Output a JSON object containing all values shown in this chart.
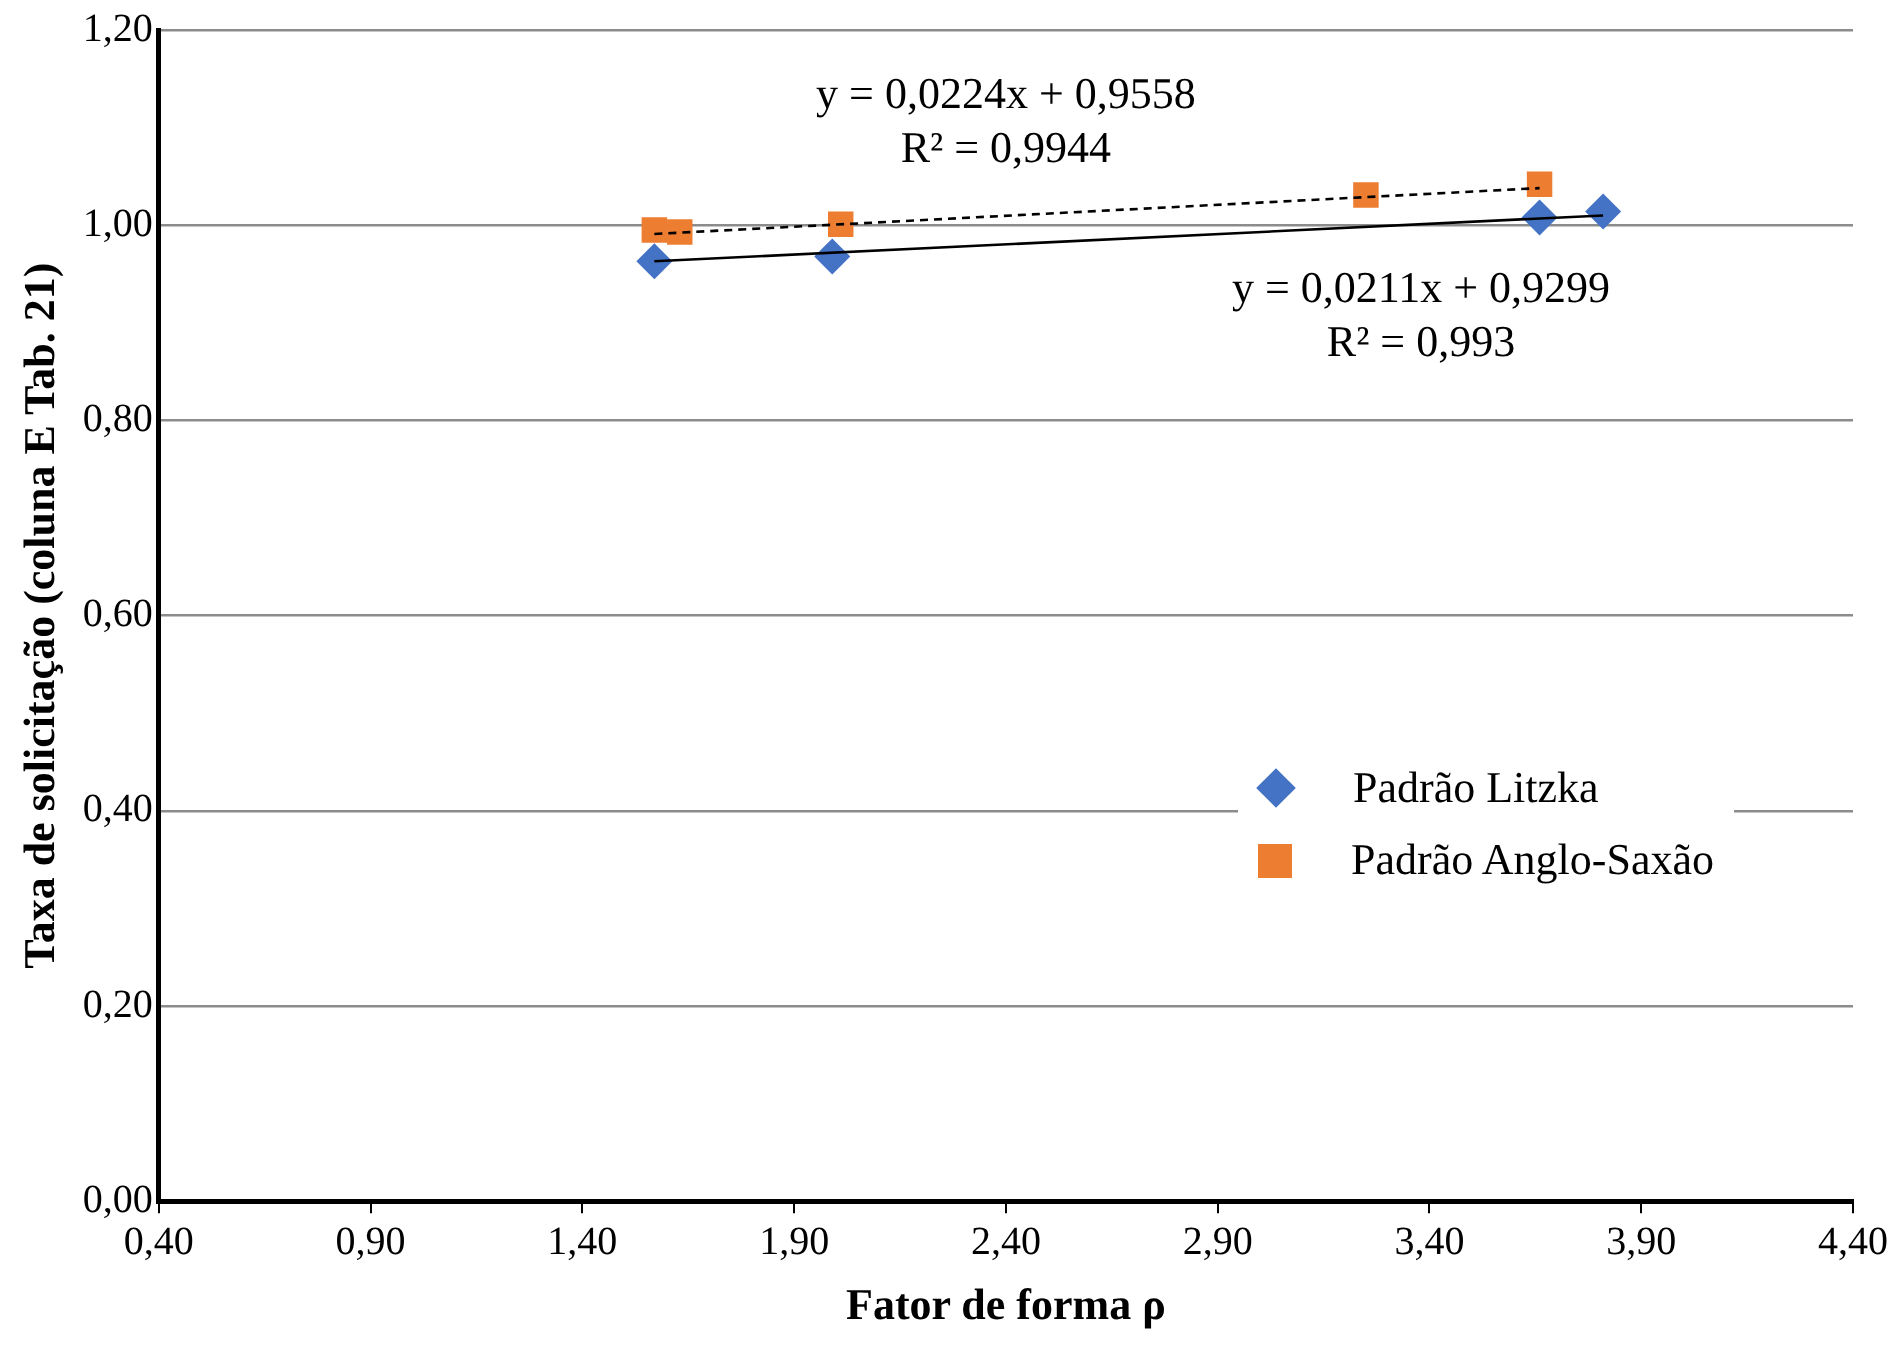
{
  "chart_data": {
    "type": "scatter",
    "xlabel": "Fator de forma ρ",
    "ylabel": "Taxa de solicitação (coluna E Tab. 21)",
    "xlim": [
      0.4,
      4.4
    ],
    "ylim": [
      0,
      1.2
    ],
    "xticks": [
      {
        "value": 0.4,
        "label": "0,40"
      },
      {
        "value": 0.9,
        "label": "0,90"
      },
      {
        "value": 1.4,
        "label": "1,40"
      },
      {
        "value": 1.9,
        "label": "1,90"
      },
      {
        "value": 2.4,
        "label": "2,40"
      },
      {
        "value": 2.9,
        "label": "2,90"
      },
      {
        "value": 3.4,
        "label": "3,40"
      },
      {
        "value": 3.9,
        "label": "3,90"
      },
      {
        "value": 4.4,
        "label": "4,40"
      }
    ],
    "yticks": [
      {
        "value": 0,
        "label": "0,00"
      },
      {
        "value": 0.2,
        "label": "0,20"
      },
      {
        "value": 0.4,
        "label": "0,40"
      },
      {
        "value": 0.6,
        "label": "0,60"
      },
      {
        "value": 0.8,
        "label": "0,80"
      },
      {
        "value": 1.0,
        "label": "1,00"
      },
      {
        "value": 1.2,
        "label": "1,20"
      }
    ],
    "grid": "y",
    "legend": "right",
    "series": [
      {
        "name": "Padrão Litzka",
        "color": "#4472c4",
        "marker": "diamond",
        "x": [
          1.57,
          1.99,
          3.66,
          3.81
        ],
        "values": [
          0.963,
          0.968,
          1.008,
          1.014
        ]
      },
      {
        "name": "Padrão Anglo-Saxão",
        "color": "#ed7d31",
        "marker": "square",
        "x": [
          1.57,
          1.63,
          2.01,
          3.25,
          3.66
        ],
        "values": [
          0.995,
          0.993,
          1.001,
          1.031,
          1.042
        ]
      },
      {
        "type": "line",
        "color": "#000000",
        "marker": "none",
        "line_style": "solid",
        "x": [
          1.57,
          3.81
        ],
        "values": [
          0.963,
          1.01
        ]
      },
      {
        "type": "line",
        "color": "#000000",
        "marker": "none",
        "line_style": "dashed",
        "x": [
          1.57,
          3.66
        ],
        "values": [
          0.991,
          1.038
        ]
      }
    ],
    "annotations": [
      "y = 0,0224x + 0,9558\nR² = 0,9944",
      "y = 0,0211x + 0,9299\nR² = 0,993"
    ]
  }
}
